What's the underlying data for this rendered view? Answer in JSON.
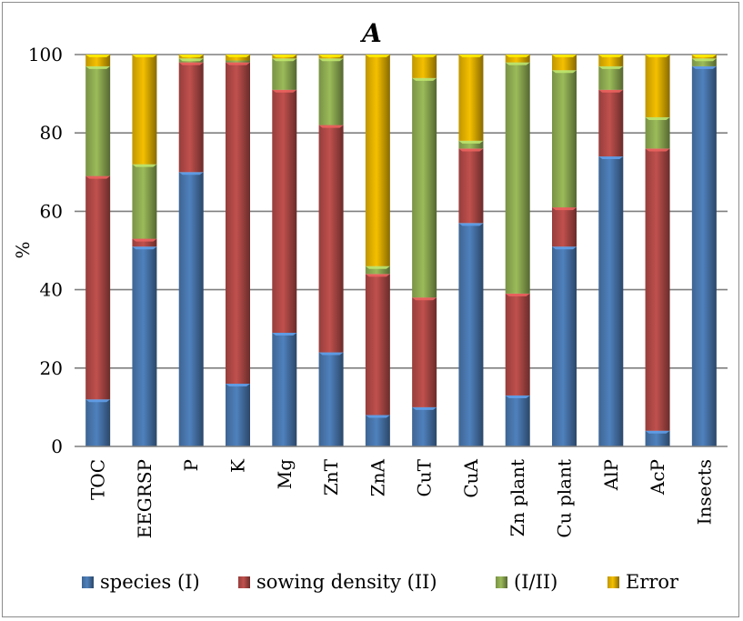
{
  "chart_data": {
    "type": "bar",
    "stacked": true,
    "title": "A",
    "ylabel": "%",
    "xlabel": "",
    "ylim": [
      0,
      100
    ],
    "yticks": [
      0,
      20,
      40,
      60,
      80,
      100
    ],
    "grid": true,
    "legend_position": "bottom",
    "categories": [
      "TOC",
      "EEGRSP",
      "P",
      "K",
      "Mg",
      "ZnT",
      "ZnA",
      "CuT",
      "CuA",
      "Zn plant",
      "Cu plant",
      "AlP",
      "AcP",
      "Insects"
    ],
    "series": [
      {
        "name": "species (I)",
        "color": "#4f81bd",
        "values": [
          12,
          51,
          70,
          16,
          29,
          24,
          8,
          10,
          57,
          13,
          51,
          74,
          4,
          97
        ]
      },
      {
        "name": "sowing density (II)",
        "color": "#c0504d",
        "values": [
          57,
          2,
          28,
          82,
          62,
          58,
          36,
          28,
          19,
          26,
          10,
          17,
          72,
          0
        ]
      },
      {
        "name": "(I/II)",
        "color": "#9bbb59",
        "values": [
          28,
          19,
          1,
          0.5,
          8,
          17,
          2,
          56,
          2,
          59,
          35,
          6,
          8,
          2
        ]
      },
      {
        "name": "Error",
        "color": "#f5c000",
        "values": [
          3,
          28,
          1,
          1.5,
          1,
          1,
          54,
          6,
          22,
          2,
          4,
          3,
          16,
          1
        ]
      }
    ]
  }
}
